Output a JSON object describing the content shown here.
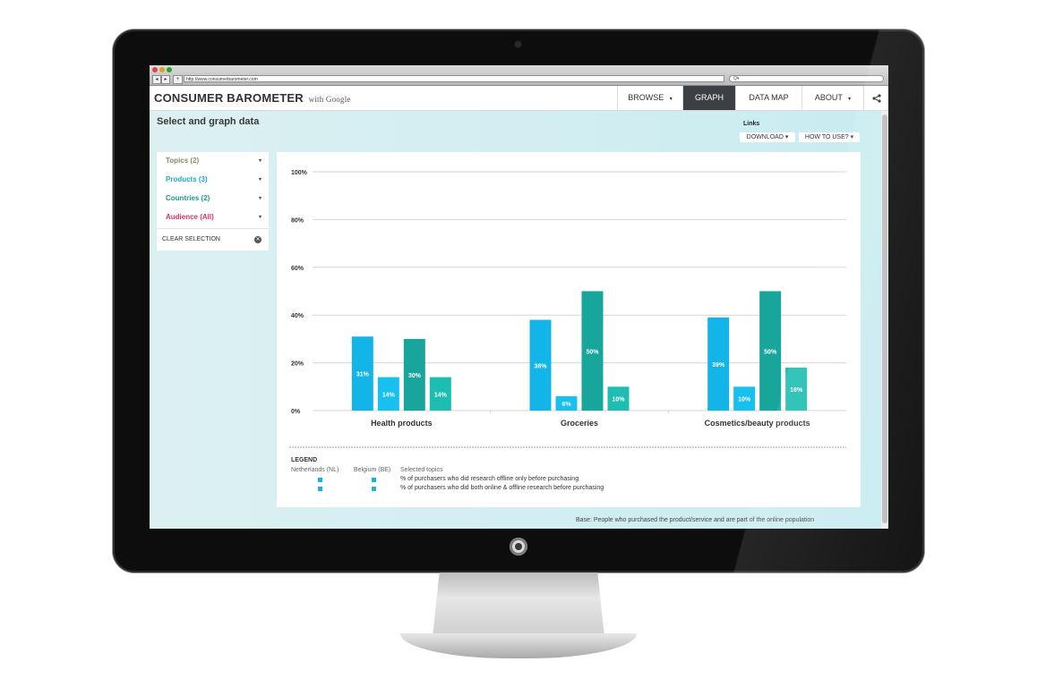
{
  "browser": {
    "url": "http://www.consumerbarometer.com",
    "search_placeholder": "Q▾",
    "back": "◂",
    "forward": "▸",
    "new_tab": "+"
  },
  "header": {
    "brand": "CONSUMER BAROMETER",
    "brand_sub": "with Google",
    "nav": [
      "BROWSE",
      "GRAPH",
      "DATA MAP",
      "ABOUT"
    ],
    "active_nav": "GRAPH",
    "browse_caret": "▾",
    "about_caret": "▾",
    "share_icon": "share-icon"
  },
  "page": {
    "title": "Select and graph data",
    "links_title": "Links",
    "download": "DOWNLOAD ▾",
    "how_to": "HOW TO USE? ▾",
    "base_note": "Base: People who purchased the product/service and are part of the online population"
  },
  "filters": {
    "items": [
      {
        "label": "Topics (2)",
        "color": "#8a8a6a"
      },
      {
        "label": "Products (3)",
        "color": "#19a8d6"
      },
      {
        "label": "Countries (2)",
        "color": "#1a9a8c"
      },
      {
        "label": "Audience (All)",
        "color": "#e0306a"
      }
    ],
    "caret": "▾",
    "clear": "CLEAR SELECTION",
    "clear_icon": "✕"
  },
  "colors": {
    "nl_offline": "#13b5e8",
    "nl_online_offline": "#18a3a0",
    "be_offline": "#13b5e8",
    "be_online_offline": "#1fbfb2"
  },
  "chart_data": {
    "type": "bar",
    "categories": [
      "Health products",
      "Groceries",
      "Cosmetics/beauty products"
    ],
    "series": [
      {
        "name": "Netherlands (NL) - % of purchasers who did research offline only before purchasing",
        "values": [
          31,
          38,
          39
        ],
        "color": "#13b5e8"
      },
      {
        "name": "Belgium (BE) - % of purchasers who did research offline only before purchasing",
        "values": [
          14,
          6,
          10
        ],
        "color": "#17c0ee"
      },
      {
        "name": "Netherlands (NL) - % of purchasers who did both online & offline research before purchasing",
        "values": [
          30,
          50,
          50
        ],
        "color": "#17a59c"
      },
      {
        "name": "Belgium (BE) - % of purchasers who did both online & offline research before purchasing",
        "values": [
          14,
          10,
          18
        ],
        "color": "#1dbdb2"
      }
    ],
    "data_labels": [
      [
        "31%",
        "14%",
        "30%",
        "14%"
      ],
      [
        "38%",
        "6%",
        "50%",
        "10%"
      ],
      [
        "39%",
        "10%",
        "50%",
        "18%"
      ]
    ],
    "yticks": [
      "0%",
      "20%",
      "40%",
      "60%",
      "80%",
      "100%"
    ],
    "ylim": [
      0,
      100
    ],
    "grid": true
  },
  "legend": {
    "title": "LEGEND",
    "col_nl": "Netherlands (NL)",
    "col_be": "Belgium (BE)",
    "col_topics": "Selected topics",
    "rows": [
      "% of purchasers who did research offline only before purchasing",
      "% of purchasers who did both online & offline research before purchasing"
    ]
  }
}
